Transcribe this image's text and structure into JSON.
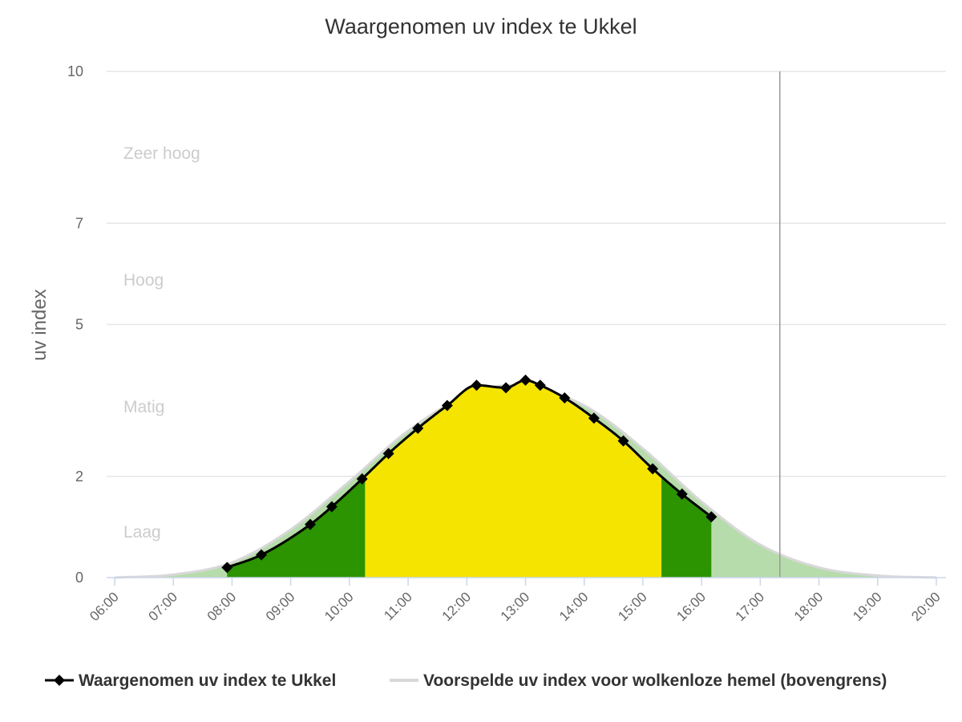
{
  "chart_data": {
    "type": "area",
    "title": "Waargenomen uv index te Ukkel",
    "ylabel": "uv index",
    "xlabel": "",
    "ylim": [
      0,
      10
    ],
    "xlim": [
      "06:00",
      "20:00"
    ],
    "y_ticks": [
      "0",
      "2",
      "5",
      "7",
      "10"
    ],
    "x_ticks": [
      "06:00",
      "07:00",
      "08:00",
      "09:00",
      "10:00",
      "11:00",
      "12:00",
      "13:00",
      "14:00",
      "15:00",
      "16:00",
      "17:00",
      "18:00",
      "19:00",
      "20:00"
    ],
    "zones": [
      {
        "label": "Laag",
        "from": 0,
        "to": 2
      },
      {
        "label": "Matig",
        "from": 2,
        "to": 5
      },
      {
        "label": "Hoog",
        "from": 5,
        "to": 7
      },
      {
        "label": "Zeer hoog",
        "from": 7,
        "to": 10
      }
    ],
    "zone_colors": {
      "laag": "#2b9400",
      "laag_forecast": "#b7dcab",
      "matig": "#f5e400"
    },
    "current_time_line": "17:20",
    "series": [
      {
        "name": "Waargenomen uv index te Ukkel",
        "color": "#000000",
        "x": [
          "07:55",
          "08:30",
          "09:20",
          "09:42",
          "10:13",
          "10:40",
          "11:10",
          "11:40",
          "12:10",
          "12:40",
          "13:00",
          "13:15",
          "13:40",
          "14:10",
          "14:40",
          "15:10",
          "15:40",
          "16:10"
        ],
        "y": [
          0.2,
          0.45,
          1.05,
          1.4,
          1.95,
          2.45,
          2.95,
          3.4,
          3.8,
          3.75,
          3.9,
          3.8,
          3.55,
          3.15,
          2.7,
          2.15,
          1.65,
          1.2
        ]
      },
      {
        "name": "Voorspelde uv index voor wolkenloze hemel (bovengrens)",
        "color": "#d8d8d8",
        "x": [
          "06:00",
          "07:00",
          "08:00",
          "09:00",
          "10:00",
          "11:00",
          "12:00",
          "12:45",
          "13:00",
          "14:00",
          "15:00",
          "16:00",
          "17:00",
          "18:00",
          "19:00",
          "20:00"
        ],
        "y": [
          0.0,
          0.06,
          0.3,
          0.95,
          1.9,
          2.9,
          3.6,
          3.8,
          3.78,
          3.4,
          2.55,
          1.5,
          0.65,
          0.2,
          0.04,
          0.0
        ]
      }
    ],
    "legend": {
      "position": "bottom",
      "items": [
        "Waargenomen uv index te Ukkel",
        "Voorspelde uv index voor wolkenloze hemel (bovengrens)"
      ]
    }
  }
}
